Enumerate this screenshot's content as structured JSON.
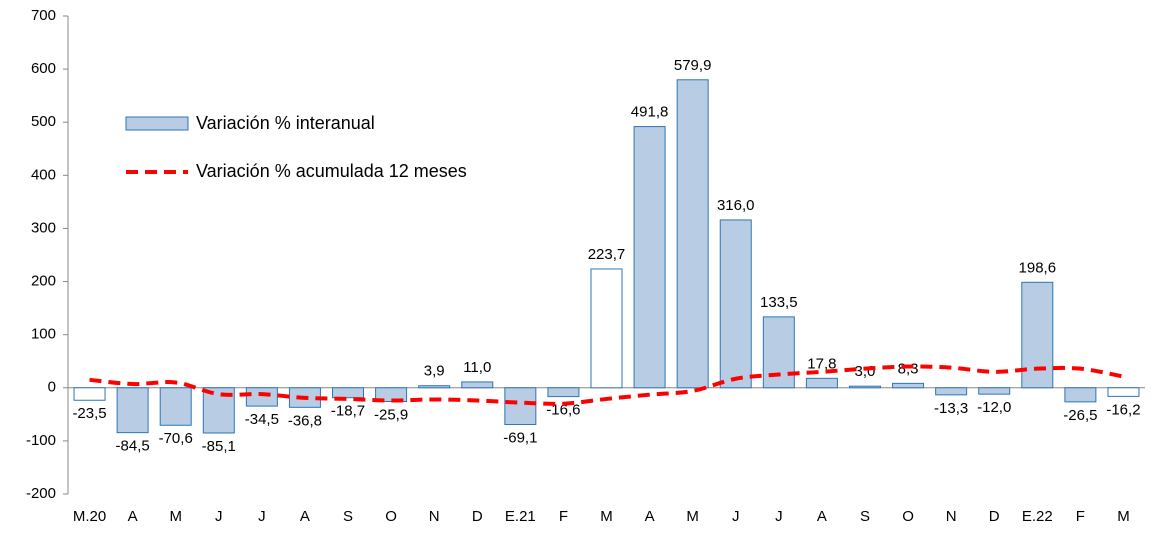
{
  "chart_data": {
    "type": "bar",
    "categories": [
      "M.20",
      "A",
      "M",
      "J",
      "J",
      "A",
      "S",
      "O",
      "N",
      "D",
      "E.21",
      "F",
      "M",
      "A",
      "M",
      "J",
      "J",
      "A",
      "S",
      "O",
      "N",
      "D",
      "E.22",
      "F",
      "M"
    ],
    "series": [
      {
        "name": "Variación % interanual",
        "type": "bar",
        "color": "#b8cce4",
        "edge_color": "#2e75b6",
        "colors": [
          "#ffffff",
          "#b8cce4",
          "#b8cce4",
          "#b8cce4",
          "#b8cce4",
          "#b8cce4",
          "#b8cce4",
          "#b8cce4",
          "#b8cce4",
          "#b8cce4",
          "#b8cce4",
          "#b8cce4",
          "#ffffff",
          "#b8cce4",
          "#b8cce4",
          "#b8cce4",
          "#b8cce4",
          "#b8cce4",
          "#b8cce4",
          "#b8cce4",
          "#b8cce4",
          "#b8cce4",
          "#b8cce4",
          "#b8cce4",
          "#ffffff"
        ],
        "values": [
          -23.5,
          -84.5,
          -70.6,
          -85.1,
          -34.5,
          -36.8,
          -18.7,
          -25.9,
          3.9,
          11.0,
          -69.1,
          -16.6,
          223.7,
          491.8,
          579.9,
          316.0,
          133.5,
          17.8,
          3.0,
          8.3,
          -13.3,
          -12.0,
          198.6,
          -26.5,
          -16.2
        ],
        "value_labels": [
          "-23,5",
          "-84,5",
          "-70,6",
          "-85,1",
          "-34,5",
          "-36,8",
          "-18,7",
          "-25,9",
          "3,9",
          "11,0",
          "-69,1",
          "-16,6",
          "223,7",
          "491,8",
          "579,9",
          "316,0",
          "133,5",
          "17,8",
          "3,0",
          "8,3",
          "-13,3",
          "-12,0",
          "198,6",
          "-26,5",
          "-16,2"
        ]
      },
      {
        "name": "Variación % acumulada 12 meses",
        "type": "line",
        "color": "#ff0000",
        "line_style": "dashed",
        "values": [
          15,
          7,
          10,
          -12,
          -12,
          -19,
          -21,
          -24,
          -22,
          -24,
          -28,
          -30,
          -21,
          -13,
          -6,
          17,
          25,
          30,
          36,
          40,
          38,
          30,
          36,
          36,
          21
        ]
      }
    ],
    "ylim": [
      -200,
      700
    ],
    "yticks": [
      -200,
      -100,
      0,
      100,
      200,
      300,
      400,
      500,
      600,
      700
    ],
    "grid": false
  }
}
